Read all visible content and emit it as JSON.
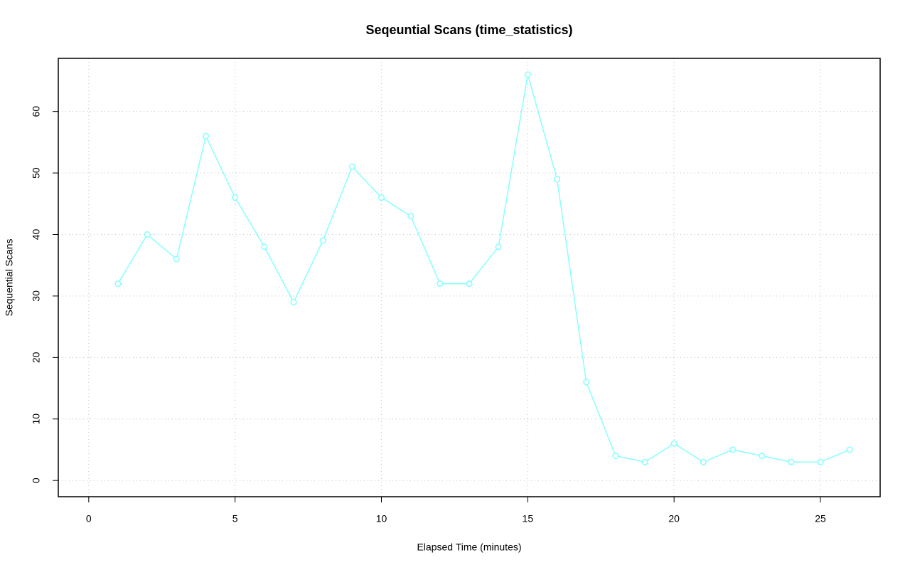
{
  "chart_data": {
    "type": "line",
    "title": "Seqeuntial Scans (time_statistics)",
    "x_label": "Elapsed Time (minutes)",
    "y_label": "Sequential Scans",
    "x": [
      1,
      2,
      3,
      4,
      5,
      6,
      7,
      8,
      9,
      10,
      11,
      12,
      13,
      14,
      15,
      16,
      17,
      18,
      19,
      20,
      21,
      22,
      23,
      24,
      25,
      26
    ],
    "series": [
      {
        "color": "#88ffff",
        "values": [
          32,
          40,
          36,
          56,
          46,
          38,
          29,
          39,
          51,
          46,
          43,
          32,
          32,
          38,
          66,
          49,
          16,
          4,
          3,
          6,
          3,
          5,
          4,
          3,
          3,
          5
        ]
      }
    ],
    "xlim": [
      -1.04,
      27.04
    ],
    "xticks": [
      0,
      5,
      10,
      15,
      20,
      25
    ],
    "ylim": [
      -2.64,
      68.64
    ],
    "yticks": [
      0,
      10,
      20,
      30,
      40,
      50,
      60
    ],
    "grid": true
  }
}
